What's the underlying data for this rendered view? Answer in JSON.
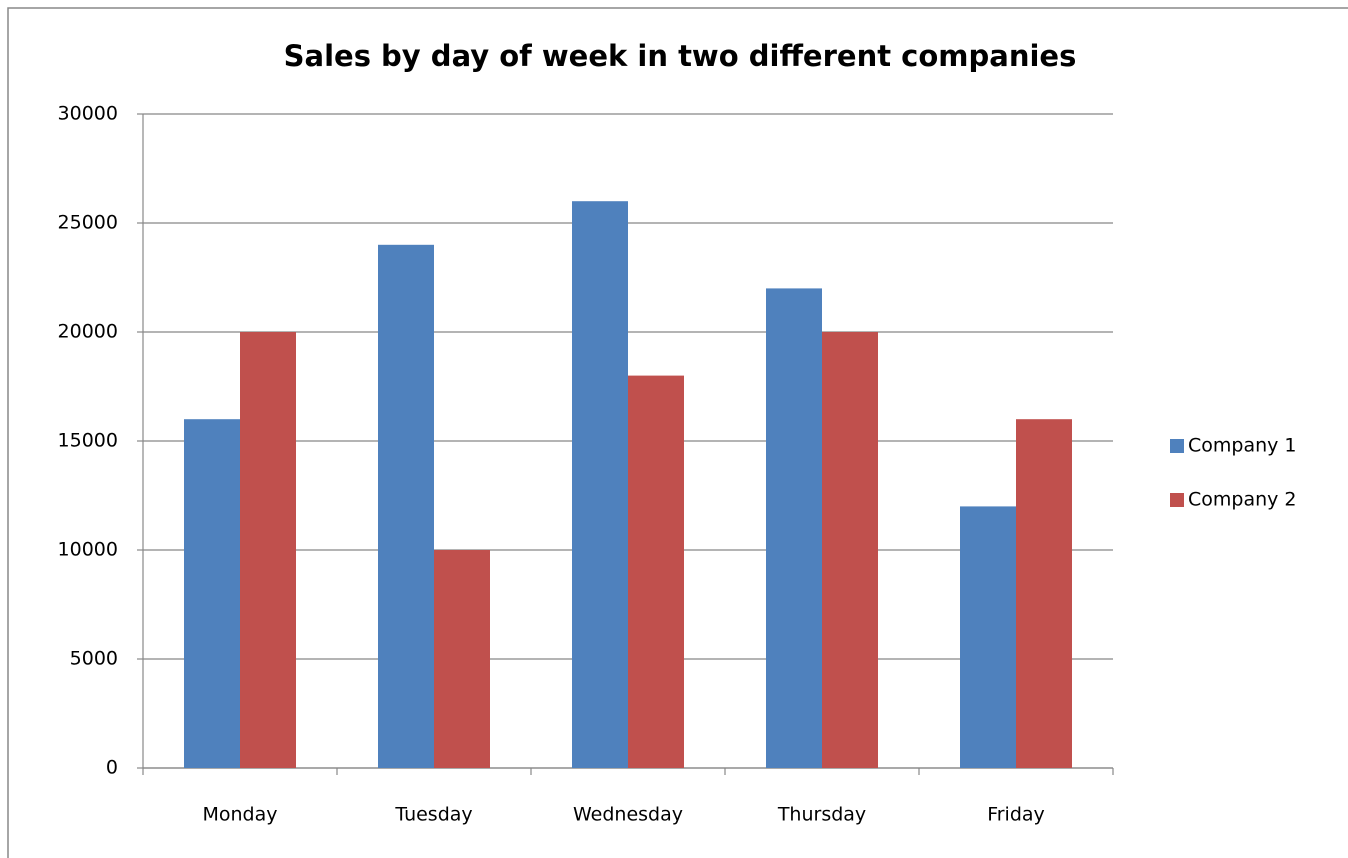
{
  "chart_data": {
    "type": "bar",
    "title": "Sales by day of week in two different companies",
    "categories": [
      "Monday",
      "Tuesday",
      "Wednesday",
      "Thursday",
      "Friday"
    ],
    "series": [
      {
        "name": "Company 1",
        "color": "#4f81bd",
        "values": [
          16000,
          24000,
          26000,
          22000,
          12000
        ]
      },
      {
        "name": "Company 2",
        "color": "#c0504d",
        "values": [
          20000,
          10000,
          18000,
          20000,
          16000
        ]
      }
    ],
    "ylim": [
      0,
      30000
    ],
    "yticks": [
      0,
      5000,
      10000,
      15000,
      20000,
      25000,
      30000
    ],
    "grid": true,
    "legend": "right"
  }
}
